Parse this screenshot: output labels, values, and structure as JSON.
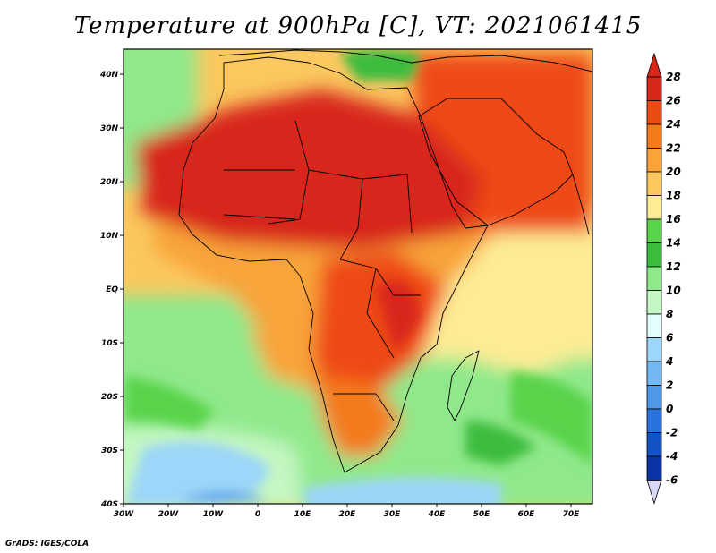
{
  "title": "Temperature at 900hPa [C], VT: 2021061415",
  "credit": "GrADS: IGES/COLA",
  "map": {
    "lon_labels": [
      "30W",
      "20W",
      "10W",
      "0",
      "10E",
      "20E",
      "30E",
      "40E",
      "50E",
      "60E",
      "70E"
    ],
    "lat_labels": [
      "40N",
      "30N",
      "20N",
      "10N",
      "EQ",
      "10S",
      "20S",
      "30S",
      "40S"
    ]
  },
  "colorbar": {
    "levels": [
      "28",
      "26",
      "24",
      "22",
      "20",
      "18",
      "16",
      "14",
      "12",
      "10",
      "8",
      "6",
      "4",
      "2",
      "0",
      "-2",
      "-4",
      "-6"
    ],
    "colors": [
      "#d8261a",
      "#ee4a14",
      "#f47a1a",
      "#f8a43a",
      "#fbc85f",
      "#fdec95",
      "#5ad34c",
      "#3cbc3c",
      "#8fe98b",
      "#c4f7c3",
      "#e4fdfe",
      "#9dd6f8",
      "#74b8f2",
      "#4f98e8",
      "#2b72dd",
      "#1552c5",
      "#0b33a3",
      "#071c6f"
    ],
    "top_color": "#d8261a",
    "bottom_color": "#d9d9f7"
  }
}
